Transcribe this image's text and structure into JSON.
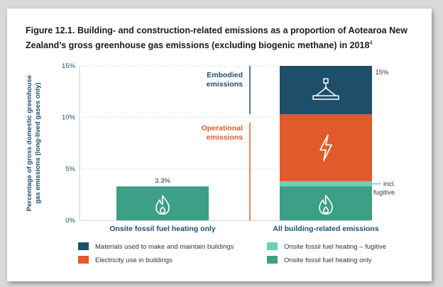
{
  "title": "Figure 12.1. Building- and construction-related emissions as a proportion of Aotearoa New Zealand’s gross greenhouse gas emissions (excluding biogenic methane) in 2018",
  "title_superscript": "4",
  "colors": {
    "materials": "#1d4f6b",
    "electricity": "#e05a2b",
    "fugitive": "#6ccfb8",
    "fossil": "#3c9f86",
    "embodied_label": "#1d4f6b",
    "operational_label": "#e05a2b",
    "axis_text": "#1d4f6b"
  },
  "chart_data": {
    "type": "bar",
    "stacked": true,
    "title": "Figure 12.1. Building- and construction-related emissions as a proportion of Aotearoa New Zealand’s gross greenhouse gas emissions (excluding biogenic methane) in 2018",
    "ylabel": "Percentage of gross domestic greenhouse gas emissions (long-lived gases only)",
    "xlabel": "",
    "ylim": [
      0,
      15
    ],
    "yticks": [
      0,
      5,
      10,
      15
    ],
    "ytick_labels": [
      "0%",
      "5%",
      "10%",
      "15%"
    ],
    "grid": true,
    "legend_position": "bottom",
    "categories": [
      "Onsite fossil fuel heating only",
      "All building-related emissions"
    ],
    "series": [
      {
        "name": "Onsite fossil fuel heating only",
        "key": "fossil",
        "values": [
          3.3,
          3.3
        ],
        "icon": "flame-icon"
      },
      {
        "name": "Onsite fossil fuel heating – fugitive",
        "key": "fugitive",
        "values": [
          0,
          0.5
        ]
      },
      {
        "name": "Electricity use in buildings",
        "key": "electricity",
        "values": [
          0,
          6.5
        ],
        "icon": "lightning-icon"
      },
      {
        "name": "Materials used to make and maintain buildings",
        "key": "materials",
        "values": [
          0,
          4.7
        ],
        "icon": "crane-icon"
      }
    ],
    "bar_totals": [
      "3.3%",
      "15%"
    ],
    "annotations": {
      "embodied": [
        "Embodied",
        "emissions"
      ],
      "operational": [
        "Operational",
        "emissions"
      ],
      "fugitive": [
        "incl.",
        "fugitive"
      ]
    },
    "legend": [
      {
        "label": "Materials used to make and maintain buildings",
        "key": "materials"
      },
      {
        "label": "Onsite fossil fuel heating – fugitive",
        "key": "fugitive"
      },
      {
        "label": "Electricity use in buildings",
        "key": "electricity"
      },
      {
        "label": "Onsite fossil fuel heating only",
        "key": "fossil"
      }
    ]
  }
}
